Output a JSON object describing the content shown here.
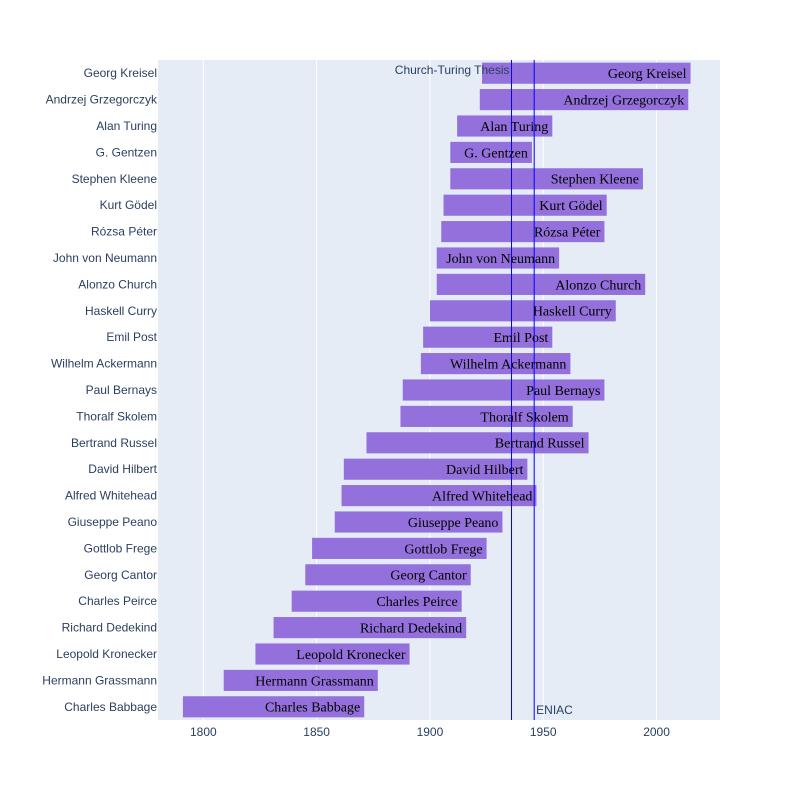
{
  "chart_data": {
    "type": "bar",
    "orientation": "horizontal",
    "series": [
      {
        "values": [
          {
            "name": "Georg Kreisel",
            "start": 1923,
            "end": 2015
          },
          {
            "name": "Andrzej Grzegorczyk",
            "start": 1922,
            "end": 2014
          },
          {
            "name": "Alan Turing",
            "start": 1912,
            "end": 1954
          },
          {
            "name": "G. Gentzen",
            "start": 1909,
            "end": 1945
          },
          {
            "name": "Stephen Kleene",
            "start": 1909,
            "end": 1994
          },
          {
            "name": "Kurt Gödel",
            "start": 1906,
            "end": 1978
          },
          {
            "name": "Rózsa Péter",
            "start": 1905,
            "end": 1977
          },
          {
            "name": "John von Neumann",
            "start": 1903,
            "end": 1957
          },
          {
            "name": "Alonzo Church",
            "start": 1903,
            "end": 1995
          },
          {
            "name": "Haskell Curry",
            "start": 1900,
            "end": 1982
          },
          {
            "name": "Emil Post",
            "start": 1897,
            "end": 1954
          },
          {
            "name": "Wilhelm Ackermann",
            "start": 1896,
            "end": 1962
          },
          {
            "name": "Paul Bernays",
            "start": 1888,
            "end": 1977
          },
          {
            "name": "Thoralf Skolem",
            "start": 1887,
            "end": 1963
          },
          {
            "name": "Bertrand Russel",
            "start": 1872,
            "end": 1970
          },
          {
            "name": "David Hilbert",
            "start": 1862,
            "end": 1943
          },
          {
            "name": "Alfred Whitehead",
            "start": 1861,
            "end": 1947
          },
          {
            "name": "Giuseppe Peano",
            "start": 1858,
            "end": 1932
          },
          {
            "name": "Gottlob Frege",
            "start": 1848,
            "end": 1925
          },
          {
            "name": "Georg Cantor",
            "start": 1845,
            "end": 1918
          },
          {
            "name": "Charles Peirce",
            "start": 1839,
            "end": 1914
          },
          {
            "name": "Richard Dedekind",
            "start": 1831,
            "end": 1916
          },
          {
            "name": "Leopold Kronecker",
            "start": 1823,
            "end": 1891
          },
          {
            "name": "Hermann Grassmann",
            "start": 1809,
            "end": 1877
          },
          {
            "name": "Charles Babbage",
            "start": 1791,
            "end": 1871
          }
        ]
      }
    ],
    "xlim": [
      1780,
      2028
    ],
    "x_ticks": [
      "1800",
      "1850",
      "1900",
      "1950",
      "2000"
    ],
    "grid": true,
    "reference_lines": [
      {
        "label": "Church-Turing Thesis",
        "x": 1936
      },
      {
        "label": "ENIAC",
        "x": 1946
      }
    ],
    "colors": {
      "bar": "#9370DB",
      "reference_line": "#0000FF",
      "plot_background": "#E5ECF6",
      "grid": "#FFFFFF",
      "axis_text": "#2a3f5f",
      "bar_text": "#000000"
    }
  }
}
